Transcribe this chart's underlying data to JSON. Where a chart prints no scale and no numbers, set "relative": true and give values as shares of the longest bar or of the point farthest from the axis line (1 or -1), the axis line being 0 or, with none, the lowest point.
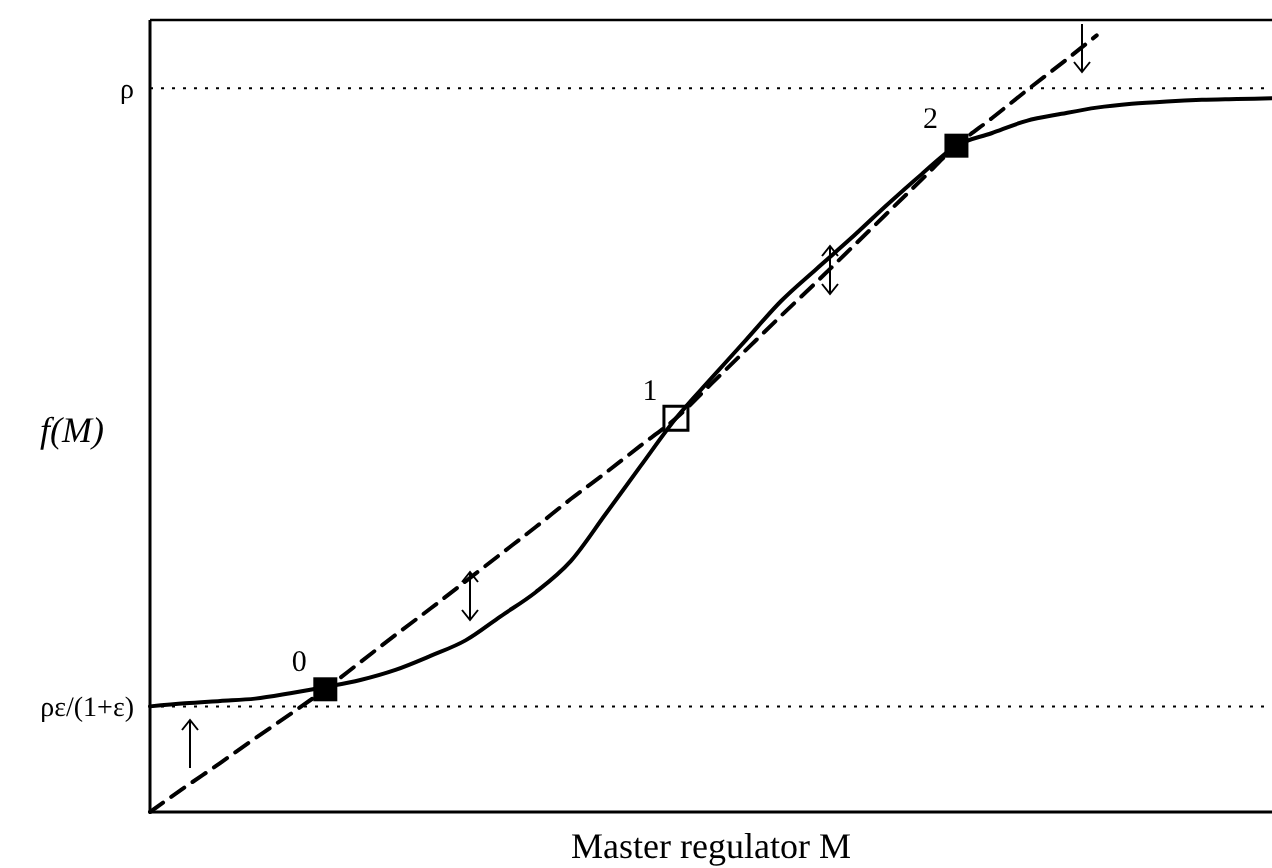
{
  "chart_data": {
    "type": "line",
    "relative": true,
    "xlabel": "Master regulator M",
    "ylabel": "f(M)",
    "legend": false,
    "categories": [
      null,
      null,
      null,
      null,
      null,
      null,
      null,
      null,
      null,
      null,
      null,
      null,
      null,
      null,
      null,
      null,
      null,
      null,
      null,
      null,
      null,
      null,
      null,
      null,
      null,
      null,
      null,
      null,
      null,
      null,
      null,
      null,
      null
    ],
    "series": [
      {
        "color": "#000000",
        "line_style": "solid",
        "values": [
          0.136,
          0.14,
          0.143,
          0.146,
          0.153,
          0.161,
          0.17,
          0.183,
          0.201,
          0.221,
          0.252,
          0.283,
          0.323,
          0.384,
          0.446,
          0.507,
          0.558,
          0.608,
          0.658,
          0.699,
          0.739,
          0.781,
          0.821,
          0.858,
          0.874,
          0.89,
          0.899,
          0.907,
          0.912,
          0.915,
          0.917,
          0.918,
          0.919
        ]
      },
      {
        "color": "#000000",
        "line_style": "dashed",
        "values": [
          0,
          0.032,
          0.063,
          0.095,
          0.126,
          0.158,
          0.193,
          0.228,
          0.262,
          0.297,
          0.332,
          0.367,
          0.403,
          0.437,
          0.472,
          0.507,
          0.551,
          0.595,
          0.639,
          0.682,
          0.726,
          0.77,
          0.814,
          0.858,
          0.893,
          0.929,
          0.964,
          1,
          null,
          null,
          null,
          null,
          null
        ]
      }
    ],
    "ref_lines": [
      {
        "axis": "y",
        "value": 0.932,
        "label": "ρ",
        "line_style": "dotted"
      },
      {
        "axis": "y",
        "value": 0.136,
        "label": "ρε/(1+ε)",
        "line_style": "dotted"
      }
    ],
    "annotations": [
      "0",
      "1",
      "2"
    ]
  }
}
